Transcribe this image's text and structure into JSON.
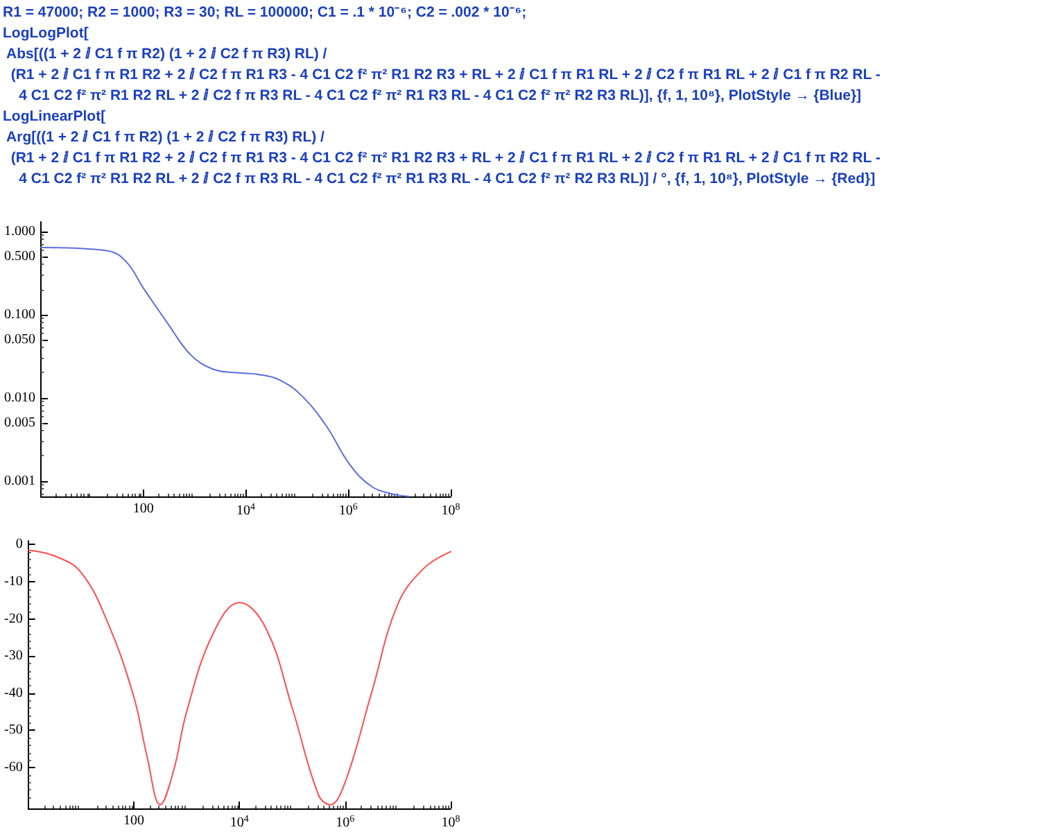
{
  "chart_data": [
    {
      "type": "line",
      "log": "xy",
      "grid": false,
      "marker": "none",
      "line_style": "solid",
      "annotations": [
        "R1 = 47000; R2 = 1000; R3 = 30; RL = 100000; C1 = .1 * 10⁻⁶; C2 = .002 * 10⁻⁶;",
        "LogLogPlot[",
        " Abs[((1 + 2 ⅈ C1 f π R2) (1 + 2 ⅈ C2 f π R3) RL) /",
        "  (R1 + 2 ⅈ C1 f π R1 R2 + 2 ⅈ C2 f π R1 R3 - 4 C1 C2 f² π² R1 R2 R3 + RL + 2 ⅈ C1 f π R1 RL + 2 ⅈ C2 f π R1 RL + 2 ⅈ C1 f π R2 RL -",
        "    4 C1 C2 f² π² R1 R2 RL + 2 ⅈ C2 f π R3 RL - 4 C1 C2 f² π² R1 R3 RL - 4 C1 C2 f² π² R2 R3 RL)], {f, 1, 10⁸}, PlotStyle → {Blue}]"
      ],
      "xlim": [
        1,
        100000000
      ],
      "xticks": [
        100,
        {
          "value": 10000,
          "label": "10$^{4}$"
        },
        {
          "value": 1000000,
          "label": "10$^{6}$"
        },
        {
          "value": 100000000,
          "label": "10$^{8}$"
        }
      ],
      "ylim": [
        0.00065,
        1.3
      ],
      "yticks": [
        {
          "value": 0.001,
          "label": "0.001"
        },
        {
          "value": 0.005,
          "label": "0.005"
        },
        {
          "value": 0.01,
          "label": "0.010"
        },
        {
          "value": 0.05,
          "label": "0.050"
        },
        {
          "value": 0.1,
          "label": "0.100"
        },
        {
          "value": 0.5,
          "label": "0.500"
        },
        {
          "value": 1,
          "label": "1.000"
        }
      ],
      "series": [
        {
          "color": "#5b6ee1",
          "x": [
            1,
            14,
            39,
            110,
            300,
            830,
            2300,
            6500,
            18000,
            49000,
            135000,
            380000,
            1050000,
            2900000,
            7900000,
            15000000
          ],
          "values": [
            0.64,
            0.6,
            0.48,
            0.19,
            0.078,
            0.033,
            0.022,
            0.02,
            0.019,
            0.016,
            0.01,
            0.0045,
            0.0016,
            0.00085,
            0.00069,
            0.00065
          ]
        }
      ]
    },
    {
      "type": "line",
      "log": "x",
      "grid": false,
      "marker": "none",
      "line_style": "solid",
      "annotations": [
        "LogLinearPlot[",
        " Arg[((1 + 2 ⅈ C1 f π R2) (1 + 2 ⅈ C2 f π R3) RL) /",
        "  (R1 + 2 ⅈ C1 f π R1 R2 + 2 ⅈ C2 f π R1 R3 - 4 C1 C2 f² π² R1 R2 R3 + RL + 2 ⅈ C1 f π R1 RL + 2 ⅈ C2 f π R1 RL + 2 ⅈ C1 f π R2 RL -",
        "    4 C1 C2 f² π² R1 R2 RL + 2 ⅈ C2 f π R3 RL - 4 C1 C2 f² π² R1 R3 RL - 4 C1 C2 f² π² R2 R3 RL)] / °, {f, 1, 10⁸}, PlotStyle → {Red}]"
      ],
      "xlim": [
        1,
        100000000
      ],
      "xticks": [
        100,
        {
          "value": 10000,
          "label": "10$^{4}$"
        },
        {
          "value": 1000000,
          "label": "10$^{6}$"
        },
        {
          "value": 100000000,
          "label": "10$^{8}$"
        }
      ],
      "ylim": [
        -71,
        1
      ],
      "yticks": [
        -60,
        -50,
        -40,
        -30,
        -20,
        -10,
        0
      ],
      "series": [
        {
          "color": "#ff4d4d",
          "x": [
            1,
            3.2,
            10,
            32,
            100,
            178,
            316,
            562,
            1000,
            3160,
            10000,
            31600,
            100000,
            316000,
            525000,
            1000000,
            3160000,
            10000000,
            31600000,
            100000000
          ],
          "values": [
            -1.5,
            -3.1,
            -7.5,
            -21,
            -41,
            -57,
            -70,
            -61,
            -45,
            -24,
            -15.6,
            -22.5,
            -44,
            -67.5,
            -70,
            -64,
            -40,
            -16,
            -6.3,
            -1.9
          ]
        }
      ]
    }
  ]
}
